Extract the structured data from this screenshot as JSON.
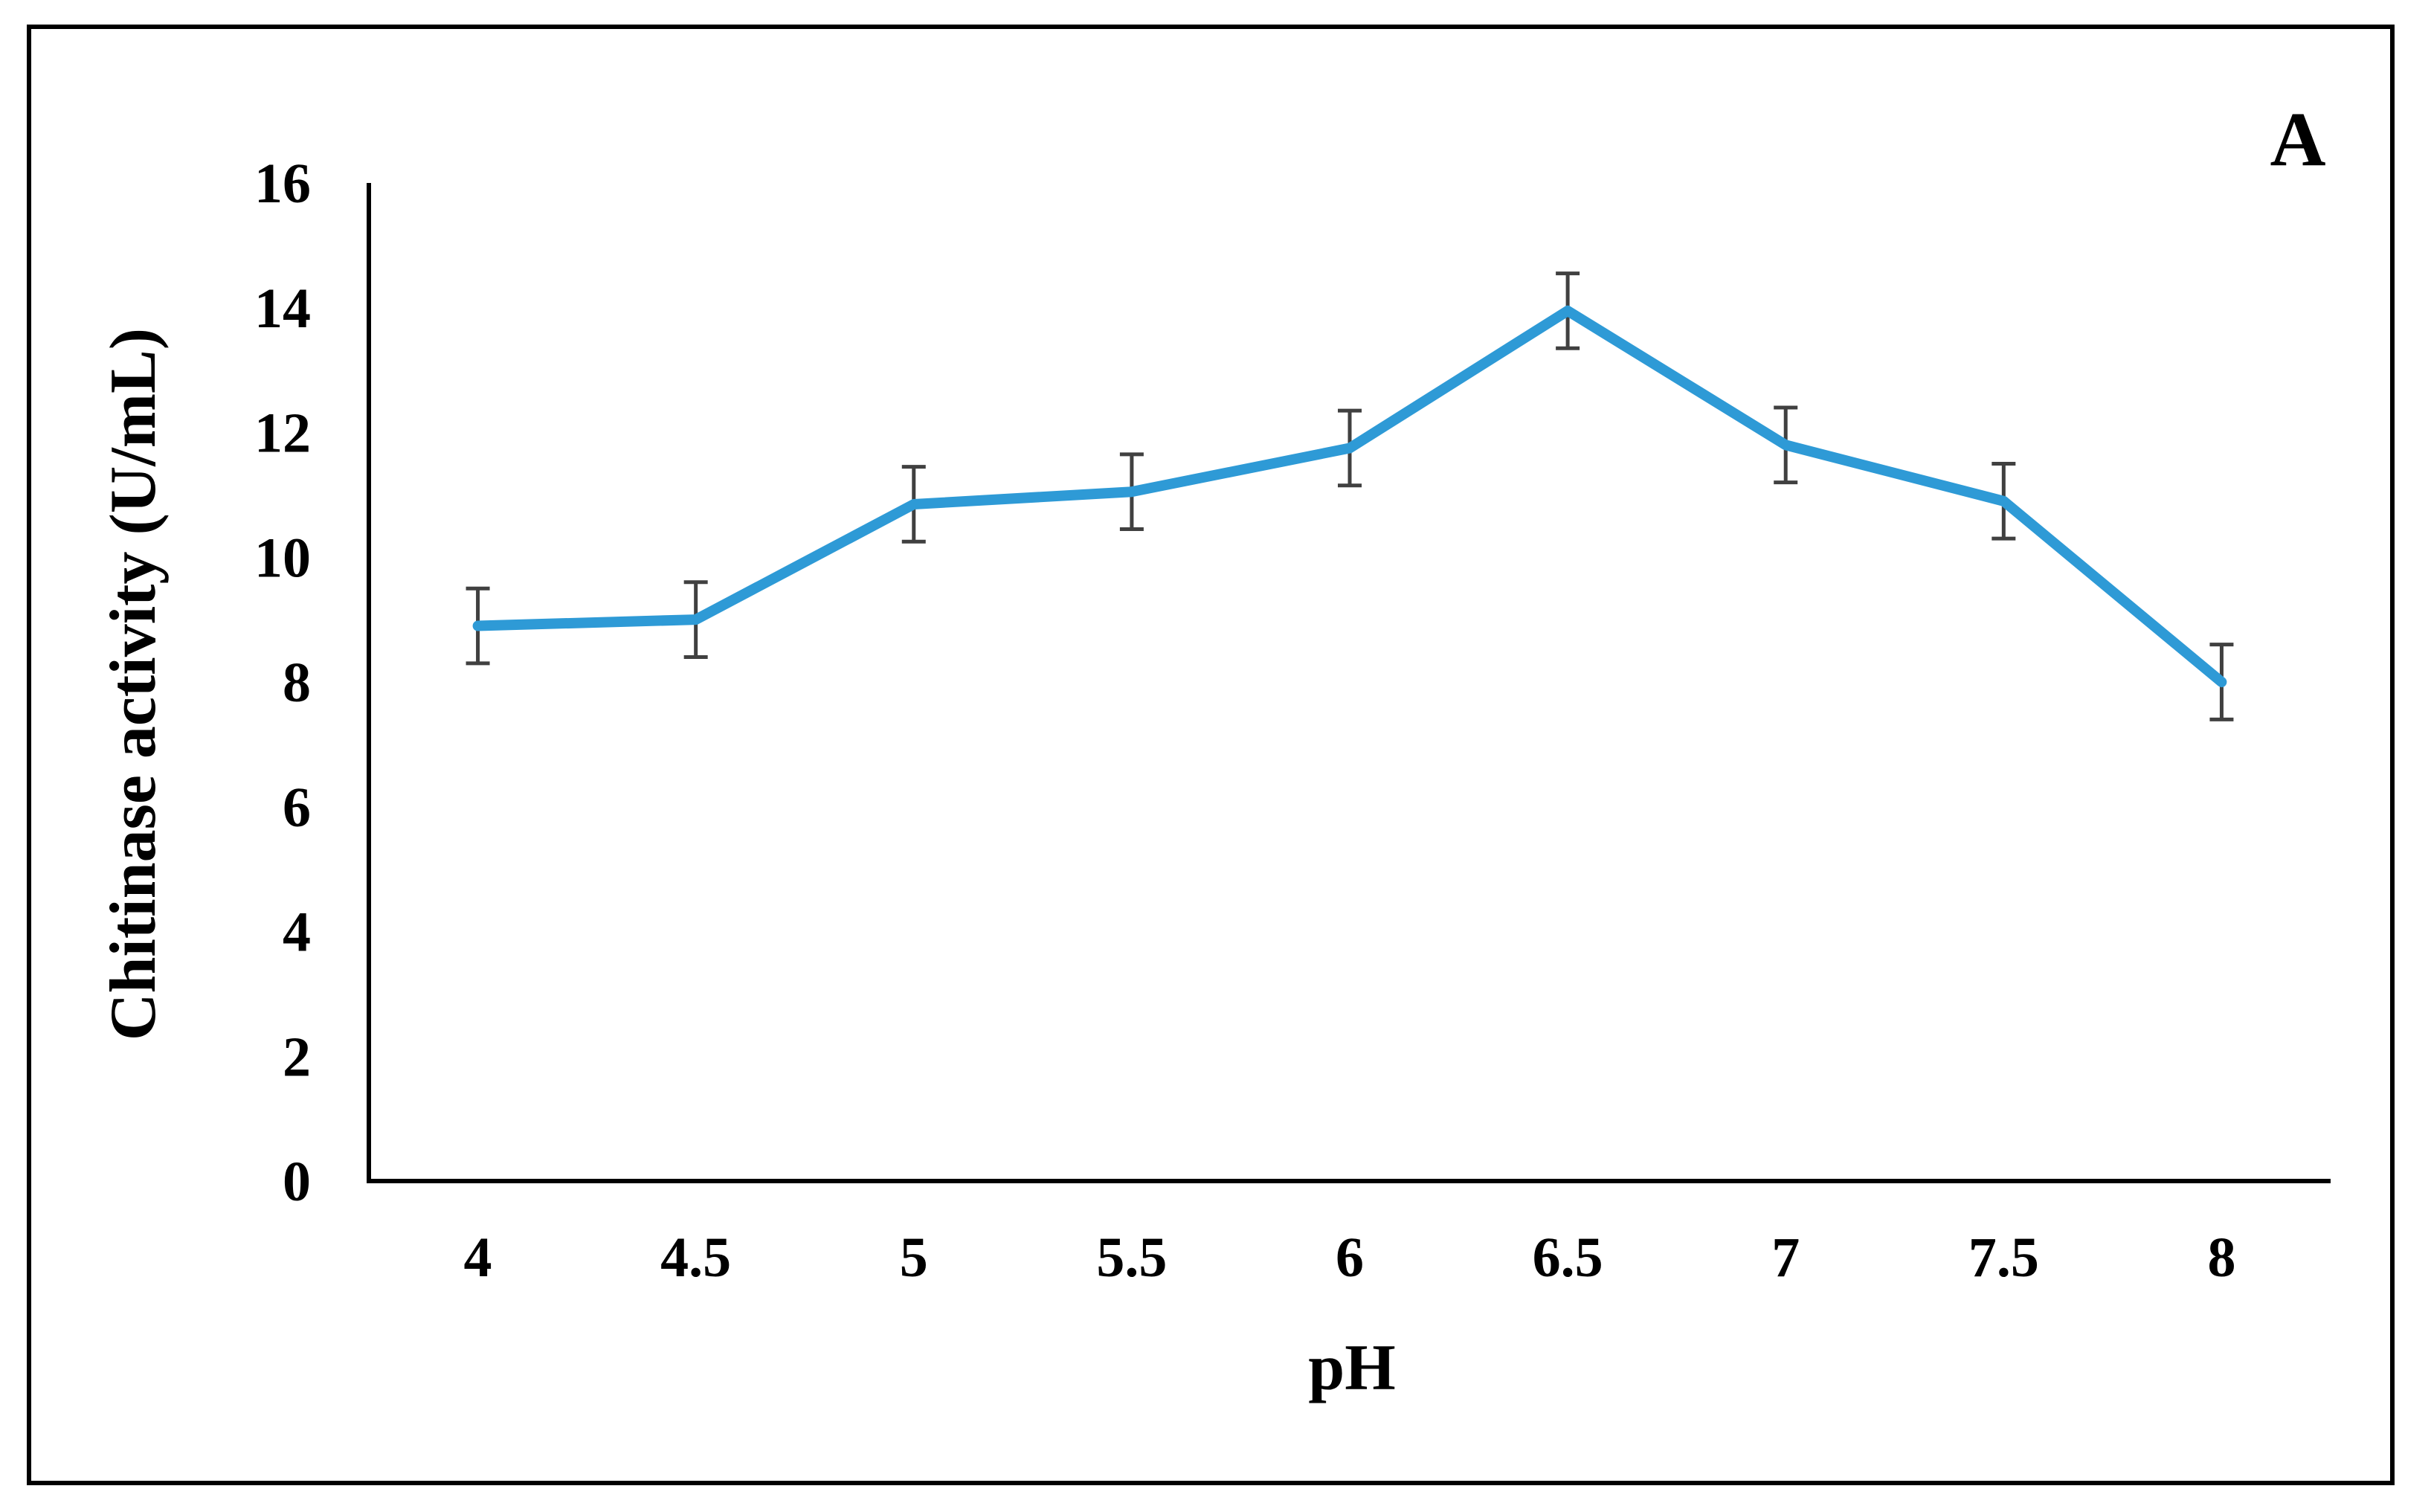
{
  "panel_label": "A",
  "chart_data": {
    "type": "line",
    "xlabel": "pH",
    "ylabel": "Chitinase activity (U/mL)",
    "categories": [
      "4",
      "4.5",
      "5",
      "5.5",
      "6",
      "6.5",
      "7",
      "7.5",
      "8"
    ],
    "y_ticks": [
      "0",
      "2",
      "4",
      "6",
      "8",
      "10",
      "12",
      "14",
      "16"
    ],
    "ylim": [
      0,
      16
    ],
    "grid": false,
    "legend": "none",
    "series": [
      {
        "values": [
          8.9,
          9.0,
          10.85,
          11.05,
          11.75,
          13.95,
          11.8,
          10.9,
          8.0
        ],
        "errors": [
          0.6,
          0.6,
          0.6,
          0.6,
          0.6,
          0.6,
          0.6,
          0.6,
          0.6
        ],
        "color": "#2e9ad6"
      }
    ],
    "axis_color": "#000000",
    "error_bar_color": "#404040"
  }
}
